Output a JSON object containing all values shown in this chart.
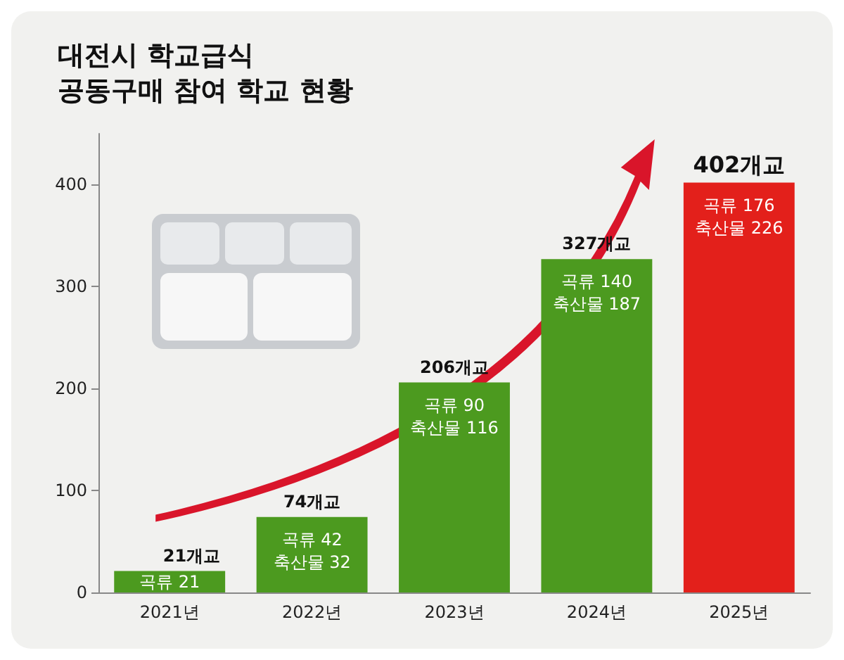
{
  "chart_data": {
    "type": "bar",
    "title": "대전시 학교급식\n공동구매 참여 학교 현황",
    "categories": [
      "2021년",
      "2022년",
      "2023년",
      "2024년",
      "2025년"
    ],
    "values": [
      21,
      74,
      206,
      327,
      402
    ],
    "colors": [
      "#4c9a1f",
      "#4c9a1f",
      "#4c9a1f",
      "#4c9a1f",
      "#e3201b"
    ],
    "value_labels": [
      "21개교",
      "74개교",
      "206개교",
      "327개교",
      "402개교"
    ],
    "annotations": [
      {
        "text": "곡류 21",
        "x": "2021년",
        "y": 21
      },
      {
        "text": "곡류 42\n축산물 32",
        "x": "2022년",
        "y": 74
      },
      {
        "text": "곡류 90\n축산물 116",
        "x": "2023년",
        "y": 206
      },
      {
        "text": "곡류 140\n축산물 187",
        "x": "2024년",
        "y": 327
      },
      {
        "text": "곡류 176\n축산물 226",
        "x": "2025년",
        "y": 402
      }
    ],
    "ylim": [
      0,
      450
    ],
    "yticks": [
      0,
      100,
      200,
      300,
      400
    ],
    "grid": false
  }
}
